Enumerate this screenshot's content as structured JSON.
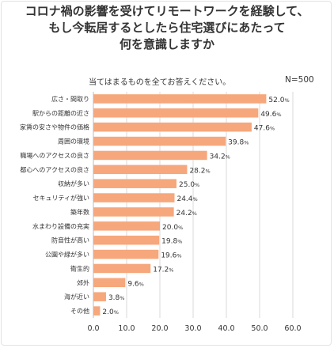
{
  "title_lines": [
    "コロナ禍の影響を受けてリモートワークを経験して、",
    "もし今転居するとしたら住宅選びにあたって",
    "何を意識しますか"
  ],
  "subtitle": "当てはまるものを全てお答えください。",
  "sample_size": "N=500",
  "chart_data": {
    "type": "bar",
    "orientation": "horizontal",
    "categories": [
      "広さ・間取り",
      "駅からの距離の近さ",
      "家賃の安さや物件の価格",
      "周囲の環境",
      "職場へのアクセスの良さ",
      "都心へのアクセスの良さ",
      "収納が多い",
      "セキュリティが強い",
      "築年数",
      "水まわり設備の充実",
      "防音性が高い",
      "公園や緑が多い",
      "衛生的",
      "郊外",
      "海が近い",
      "その他"
    ],
    "values": [
      52.0,
      49.6,
      47.6,
      39.8,
      34.2,
      28.2,
      25.0,
      24.4,
      24.2,
      20.0,
      19.8,
      19.6,
      17.2,
      9.6,
      3.8,
      2.0
    ],
    "value_unit": "%",
    "xlim": [
      0,
      60
    ],
    "xticks": [
      "0.0",
      "10.0",
      "20.0",
      "30.0",
      "40.0",
      "50.0",
      "60.0"
    ],
    "grid": true,
    "bar_color": "#f6a77c",
    "grid_color": "#d9d9d9"
  }
}
